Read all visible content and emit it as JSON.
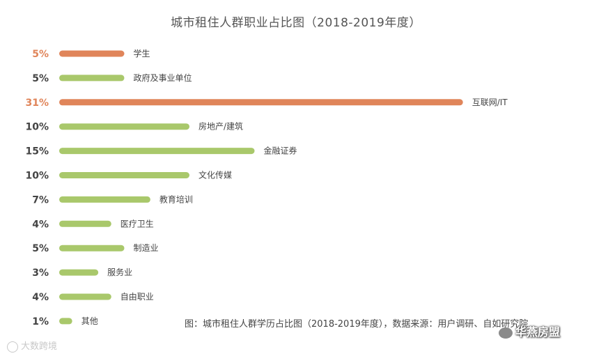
{
  "chart_data": {
    "type": "bar",
    "orientation": "horizontal",
    "title": "城市租住人群职业占比图（2018-2019年度）",
    "categories": [
      "学生",
      "政府及事业单位",
      "互联网/IT",
      "房地产/建筑",
      "金融证券",
      "文化传媒",
      "教育培训",
      "医疗卫生",
      "制造业",
      "服务业",
      "自由职业",
      "其他"
    ],
    "values": [
      5,
      5,
      31,
      10,
      15,
      10,
      7,
      4,
      5,
      3,
      4,
      1
    ],
    "labels": [
      "5%",
      "5%",
      "31%",
      "10%",
      "15%",
      "10%",
      "7%",
      "4%",
      "5%",
      "3%",
      "4%",
      "1%"
    ],
    "highlight": [
      true,
      false,
      true,
      false,
      false,
      false,
      false,
      false,
      false,
      false,
      false,
      false
    ],
    "grid": false,
    "colors": {
      "highlight": "#e0855a",
      "default": "#a9c86b",
      "text": "#444444"
    }
  },
  "footnote": "图：城市租住人群学历占比图（2018-2019年度），数据来源：用户调研、自如研究院",
  "watermark_left": "大数跨境",
  "watermark_right": "华燕房盟"
}
